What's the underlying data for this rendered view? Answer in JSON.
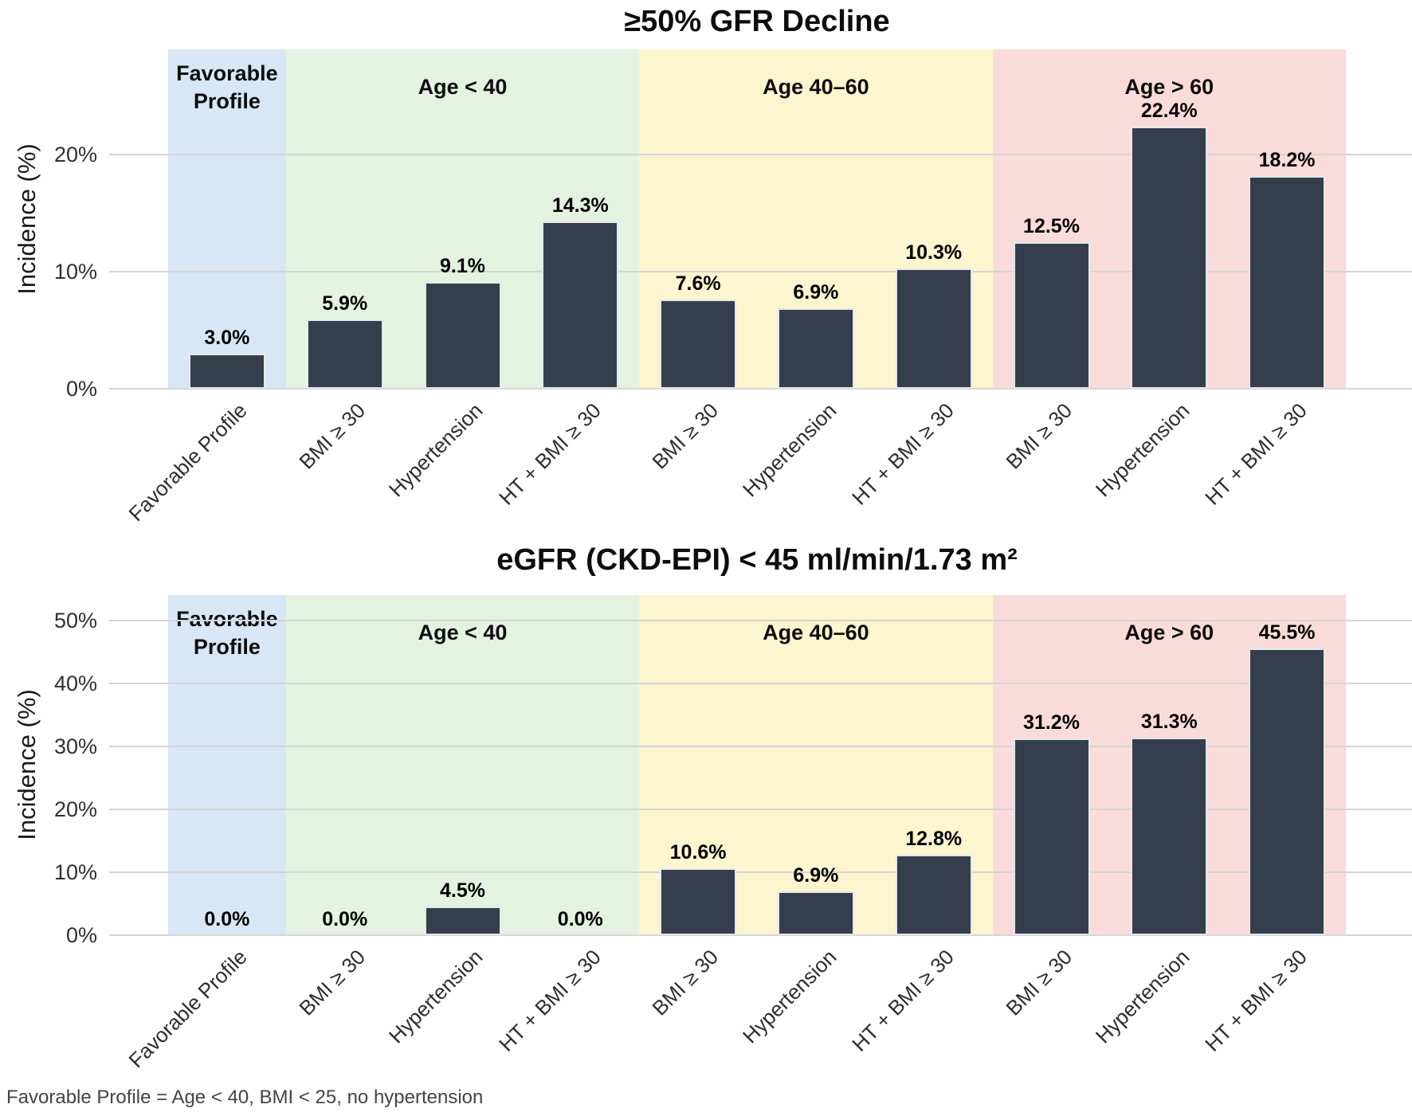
{
  "figure": {
    "footnote": "Favorable Profile = Age < 40, BMI < 25, no hypertension"
  },
  "colors": {
    "bar": "#343e4d",
    "gridline": "#d5d5d5",
    "band_blue": "#d8e7f5",
    "band_green": "#e4f2e0",
    "band_yellow": "#fcf5cf",
    "band_pink": "#f9dcda"
  },
  "chart_data": [
    {
      "type": "bar",
      "title": "≥50% GFR Decline",
      "xlabel": "",
      "ylabel": "Incidence (%)",
      "ylim": [
        0,
        29
      ],
      "grid": "horizontal-major",
      "legend": "none",
      "yticks": [
        {
          "value": 0,
          "label": "0%"
        },
        {
          "value": 10,
          "label": "10%"
        },
        {
          "value": 20,
          "label": "20%"
        }
      ],
      "bands": [
        {
          "label": "Favorable\nProfile",
          "slots": 1,
          "color_key": "band_blue"
        },
        {
          "label": "Age < 40",
          "slots": 3,
          "color_key": "band_green"
        },
        {
          "label": "Age 40–60",
          "slots": 3,
          "color_key": "band_yellow"
        },
        {
          "label": "Age > 60",
          "slots": 3,
          "color_key": "band_pink"
        }
      ],
      "categories": [
        "Favorable Profile",
        "BMI ≥ 30",
        "Hypertension",
        "HT + BMI ≥ 30",
        "BMI ≥ 30",
        "Hypertension",
        "HT + BMI ≥ 30",
        "BMI ≥ 30",
        "Hypertension",
        "HT + BMI ≥ 30"
      ],
      "values": [
        3.0,
        5.9,
        9.1,
        14.3,
        7.6,
        6.9,
        10.3,
        12.5,
        22.4,
        18.2
      ],
      "value_labels": [
        "3.0%",
        "5.9%",
        "9.1%",
        "14.3%",
        "7.6%",
        "6.9%",
        "10.3%",
        "12.5%",
        "22.4%",
        "18.2%"
      ]
    },
    {
      "type": "bar",
      "title": "eGFR (CKD-EPI) < 45 ml/min/1.73 m²",
      "xlabel": "",
      "ylabel": "Incidence (%)",
      "ylim": [
        0,
        54
      ],
      "grid": "horizontal-major",
      "legend": "none",
      "yticks": [
        {
          "value": 0,
          "label": "0%"
        },
        {
          "value": 10,
          "label": "10%"
        },
        {
          "value": 20,
          "label": "20%"
        },
        {
          "value": 30,
          "label": "30%"
        },
        {
          "value": 40,
          "label": "40%"
        },
        {
          "value": 50,
          "label": "50%"
        }
      ],
      "bands": [
        {
          "label": "Favorable\nProfile",
          "slots": 1,
          "color_key": "band_blue"
        },
        {
          "label": "Age < 40",
          "slots": 3,
          "color_key": "band_green"
        },
        {
          "label": "Age 40–60",
          "slots": 3,
          "color_key": "band_yellow"
        },
        {
          "label": "Age > 60",
          "slots": 3,
          "color_key": "band_pink"
        }
      ],
      "categories": [
        "Favorable Profile",
        "BMI ≥ 30",
        "Hypertension",
        "HT + BMI ≥ 30",
        "BMI ≥ 30",
        "Hypertension",
        "HT + BMI ≥ 30",
        "BMI ≥ 30",
        "Hypertension",
        "HT + BMI ≥ 30"
      ],
      "values": [
        0.0,
        0.0,
        4.5,
        0.0,
        10.6,
        6.9,
        12.8,
        31.2,
        31.3,
        45.5
      ],
      "value_labels": [
        "0.0%",
        "0.0%",
        "4.5%",
        "0.0%",
        "10.6%",
        "6.9%",
        "12.8%",
        "31.2%",
        "31.3%",
        "45.5%"
      ]
    }
  ]
}
